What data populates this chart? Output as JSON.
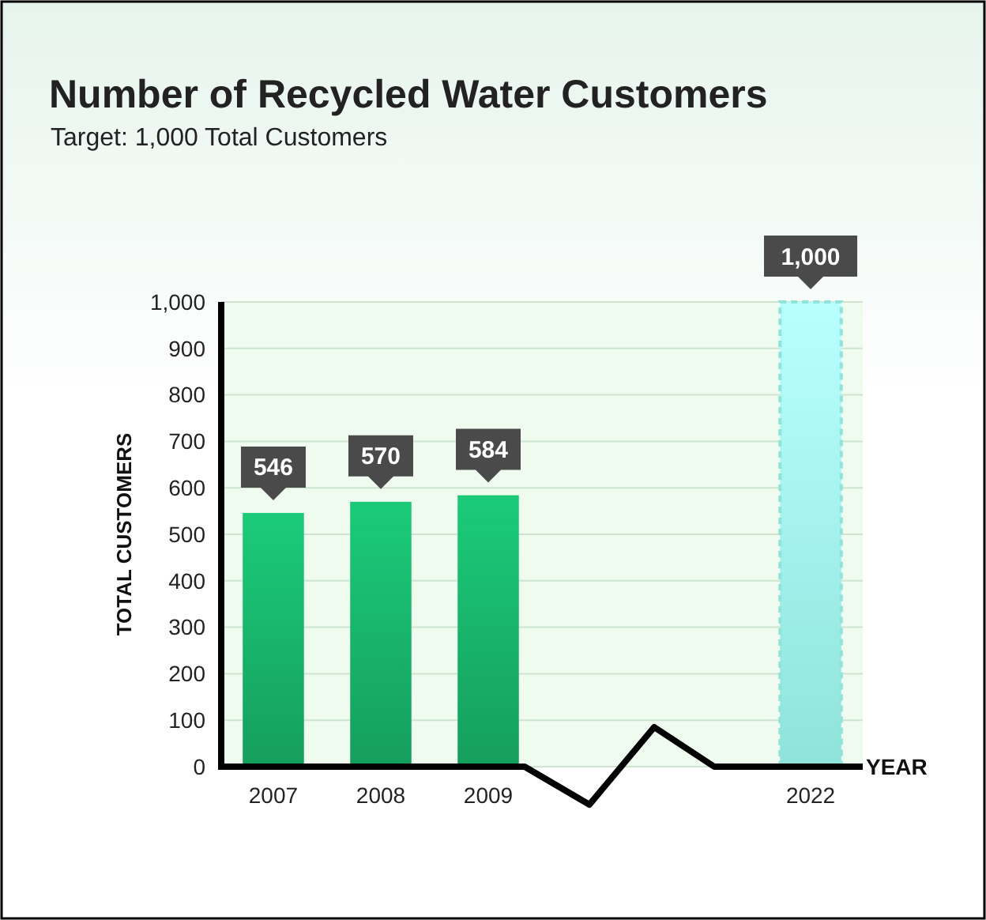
{
  "chart_data": {
    "type": "bar",
    "title": "Number of Recycled Water Customers",
    "subtitle": "Target: 1,000 Total Customers",
    "xlabel": "YEAR",
    "ylabel": "TOTAL CUSTOMERS",
    "categories": [
      "2007",
      "2008",
      "2009",
      null,
      null,
      "2022"
    ],
    "values": [
      546,
      570,
      584,
      null,
      null,
      1000
    ],
    "colors": [
      "#159e5e",
      "#159e5e",
      "#159e5e",
      null,
      null,
      "#8fe3da"
    ],
    "value_labels": [
      "546",
      "570",
      "584",
      null,
      null,
      "1,000"
    ],
    "ylim": [
      0,
      1000
    ],
    "yticks": [
      0,
      100,
      200,
      300,
      400,
      500,
      600,
      700,
      800,
      900,
      {
        "value": 1000,
        "label": "1,000"
      }
    ],
    "grid": "y"
  }
}
